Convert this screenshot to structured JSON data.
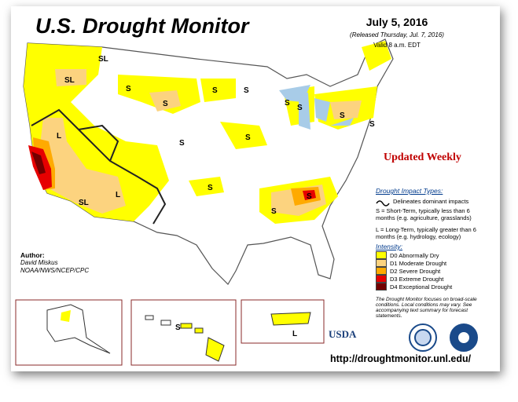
{
  "header": {
    "title": "U.S. Drought Monitor",
    "date": "July 5, 2016",
    "released": "(Released Thursday, Jul. 7, 2016)",
    "valid": "Valid 8 a.m. EDT"
  },
  "updated": "Updated Weekly",
  "impact": {
    "heading": "Drought Impact Types:",
    "line": "Delineates dominant impacts",
    "short": "S = Short-Term, typically less than 6 months (e.g. agriculture, grasslands)",
    "long": "L = Long-Term, typically greater than 6 months (e.g. hydrology, ecology)"
  },
  "intensity": {
    "heading": "Intensity:",
    "items": [
      {
        "label": "D0 Abnormally Dry",
        "color": "#ffff00"
      },
      {
        "label": "D1 Moderate Drought",
        "color": "#fcd37f"
      },
      {
        "label": "D2 Severe Drought",
        "color": "#ffaa00"
      },
      {
        "label": "D3 Extreme Drought",
        "color": "#e60000"
      },
      {
        "label": "D4 Exceptional Drought",
        "color": "#730000"
      }
    ]
  },
  "note": "The Drought Monitor focuses on broad-scale conditions. Local conditions may vary. See accompanying text summary for forecast statements.",
  "author": {
    "heading": "Author:",
    "name": "David Miskus",
    "org": "NOAA/NWS/NCEP/CPC"
  },
  "map_labels": [
    "SL",
    "SL",
    "S",
    "S",
    "S",
    "S",
    "L",
    "SL",
    "L",
    "S",
    "S",
    "S",
    "S",
    "S",
    "S",
    "S",
    "S",
    "S",
    "S",
    "L"
  ],
  "logo": "USDA",
  "url": "http://droughtmonitor.unl.edu/"
}
